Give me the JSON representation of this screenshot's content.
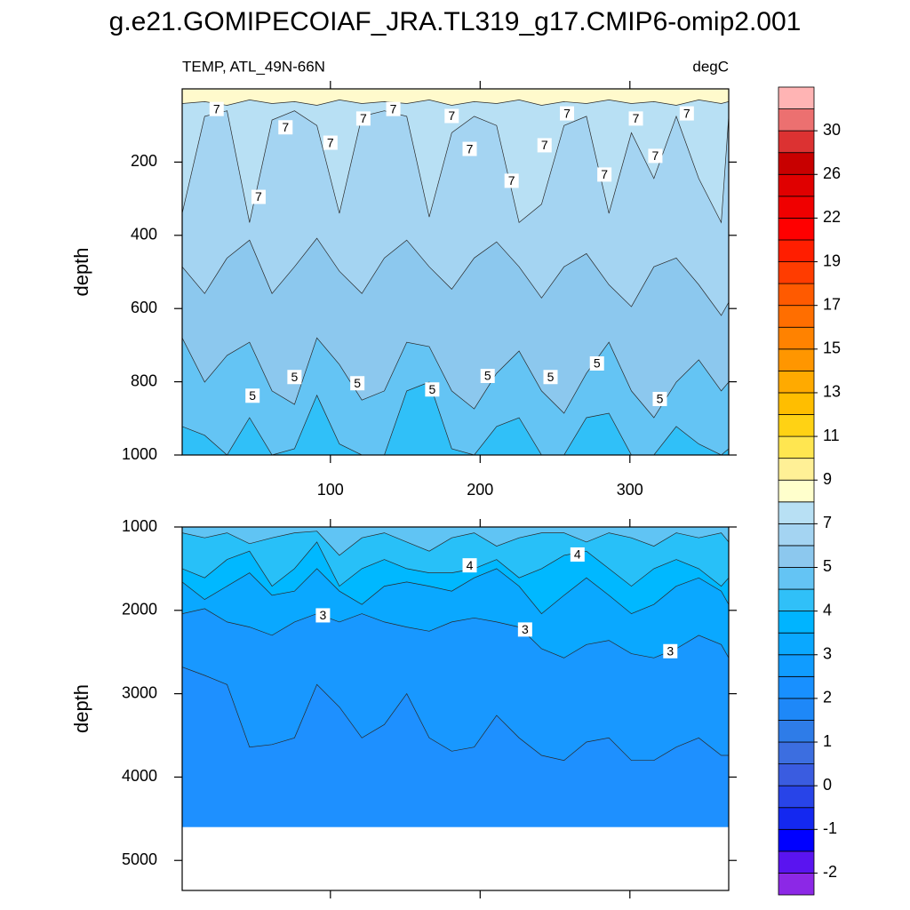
{
  "title": "g.e21.GOMIPECOIAF_JRA.TL319_g17.CMIP6-omip2.001",
  "chart_data": [
    {
      "type": "contour",
      "subtitle_left": "TEMP, ATL_49N-66N",
      "subtitle_right": "degC",
      "ylabel": "depth",
      "xlim": [
        1,
        366
      ],
      "xticks": [
        100,
        200,
        300
      ],
      "show_xtick_labels": true,
      "ylim": [
        0,
        1000
      ],
      "yticks": [
        200,
        400,
        600,
        800,
        1000
      ],
      "x": [
        1,
        16,
        31,
        46,
        61,
        76,
        91,
        106,
        121,
        136,
        151,
        166,
        181,
        196,
        211,
        226,
        241,
        256,
        271,
        286,
        301,
        316,
        331,
        346,
        361,
        366
      ],
      "base_color": "#30c0f8",
      "contours": [
        {
          "color": "#64c4f4",
          "depth": [
            922,
            946,
            1000,
            898,
            1000,
            983,
            837,
            970,
            1000,
            1000,
            825,
            801,
            983,
            1000,
            922,
            898,
            1000,
            1000,
            898,
            886,
            1000,
            1000,
            922,
            970,
            1000,
            983
          ]
        },
        {
          "color": "#8cc8ee",
          "depth": [
            680,
            801,
            728,
            692,
            825,
            862,
            680,
            753,
            850,
            825,
            692,
            704,
            825,
            874,
            777,
            716,
            825,
            886,
            777,
            692,
            825,
            898,
            801,
            740,
            825,
            801
          ]
        },
        {
          "color": "#a4d4f2",
          "depth": [
            486,
            559,
            462,
            413,
            559,
            486,
            408,
            498,
            559,
            462,
            413,
            486,
            547,
            462,
            418,
            486,
            571,
            486,
            450,
            535,
            595,
            486,
            462,
            535,
            619,
            583
          ]
        },
        {
          "color": "#b8e0f4",
          "depth": [
            340,
            75,
            60,
            365,
            85,
            60,
            100,
            340,
            75,
            60,
            75,
            350,
            120,
            75,
            100,
            365,
            315,
            100,
            75,
            340,
            120,
            245,
            75,
            245,
            365,
            75
          ]
        },
        {
          "color": "#fffacc",
          "depth": [
            40,
            35,
            45,
            30,
            40,
            35,
            45,
            30,
            40,
            35,
            40,
            30,
            45,
            35,
            40,
            30,
            45,
            35,
            40,
            30,
            40,
            35,
            45,
            30,
            40,
            35
          ]
        }
      ],
      "contour_labels": [
        {
          "x": 24,
          "y": 55,
          "value": 7
        },
        {
          "x": 70,
          "y": 105,
          "value": 7
        },
        {
          "x": 100,
          "y": 147,
          "value": 7
        },
        {
          "x": 122,
          "y": 81,
          "value": 7
        },
        {
          "x": 142,
          "y": 55,
          "value": 7
        },
        {
          "x": 181,
          "y": 74,
          "value": 7
        },
        {
          "x": 193,
          "y": 164,
          "value": 7
        },
        {
          "x": 221,
          "y": 251,
          "value": 7
        },
        {
          "x": 243,
          "y": 154,
          "value": 7
        },
        {
          "x": 258,
          "y": 67,
          "value": 7
        },
        {
          "x": 283,
          "y": 234,
          "value": 7
        },
        {
          "x": 304,
          "y": 81,
          "value": 7
        },
        {
          "x": 317,
          "y": 183,
          "value": 7
        },
        {
          "x": 338,
          "y": 67,
          "value": 7
        },
        {
          "x": 52,
          "y": 295,
          "value": 7
        },
        {
          "x": 48,
          "y": 838,
          "value": 5
        },
        {
          "x": 76,
          "y": 787,
          "value": 5
        },
        {
          "x": 118,
          "y": 804,
          "value": 5
        },
        {
          "x": 168,
          "y": 821,
          "value": 5
        },
        {
          "x": 205,
          "y": 784,
          "value": 5
        },
        {
          "x": 247,
          "y": 787,
          "value": 5
        },
        {
          "x": 278,
          "y": 750,
          "value": 5
        },
        {
          "x": 320,
          "y": 847,
          "value": 5
        }
      ]
    },
    {
      "type": "contour",
      "ylabel": "depth",
      "xlim": [
        1,
        366
      ],
      "xticks": [
        100,
        200,
        300
      ],
      "show_xtick_labels": false,
      "ylim": [
        1000,
        5360
      ],
      "yticks": [
        1000,
        2000,
        3000,
        4000,
        5000
      ],
      "data_bottom": 4600,
      "x": [
        1,
        16,
        31,
        46,
        61,
        76,
        91,
        106,
        121,
        136,
        151,
        166,
        181,
        196,
        211,
        226,
        241,
        256,
        271,
        286,
        301,
        316,
        331,
        346,
        361,
        366
      ],
      "base_color": "#1e90ff",
      "contours": [
        {
          "color": "#1898ff",
          "depth": [
            2680,
            2780,
            2890,
            3640,
            3610,
            3530,
            2890,
            3160,
            3530,
            3370,
            3000,
            3530,
            3690,
            3640,
            3260,
            3530,
            3740,
            3800,
            3580,
            3530,
            3800,
            3800,
            3640,
            3530,
            3740,
            3740
          ]
        },
        {
          "color": "#0aa8ff",
          "depth": [
            2040,
            1980,
            2140,
            2200,
            2300,
            2140,
            2040,
            2140,
            2040,
            2140,
            2200,
            2250,
            2140,
            2090,
            2140,
            2200,
            2460,
            2570,
            2410,
            2360,
            2520,
            2570,
            2460,
            2300,
            2410,
            2570
          ]
        },
        {
          "color": "#00b8ff",
          "depth": [
            1660,
            1870,
            1710,
            1550,
            1820,
            1770,
            1500,
            1770,
            1930,
            1710,
            1660,
            1710,
            1770,
            1610,
            1500,
            1710,
            2040,
            1820,
            1610,
            1820,
            2040,
            1930,
            1710,
            1610,
            1770,
            1930
          ]
        },
        {
          "color": "#28c0f8",
          "depth": [
            1500,
            1610,
            1390,
            1290,
            1710,
            1500,
            1180,
            1710,
            1500,
            1390,
            1500,
            1550,
            1550,
            1500,
            1390,
            1610,
            1500,
            1340,
            1290,
            1500,
            1710,
            1500,
            1390,
            1500,
            1710,
            1610
          ]
        },
        {
          "color": "#60c4f4",
          "depth": [
            1070,
            1130,
            1070,
            1200,
            1130,
            1070,
            1050,
            1340,
            1130,
            1070,
            1180,
            1290,
            1130,
            1070,
            1230,
            1130,
            1070,
            1070,
            1180,
            1070,
            1130,
            1230,
            1070,
            1130,
            1070,
            1180
          ]
        }
      ],
      "contour_labels": [
        {
          "x": 193,
          "y": 1460,
          "value": 4
        },
        {
          "x": 265,
          "y": 1330,
          "value": 4
        },
        {
          "x": 95,
          "y": 2060,
          "value": 3
        },
        {
          "x": 230,
          "y": 2230,
          "value": 3
        },
        {
          "x": 327,
          "y": 2490,
          "value": 3
        }
      ]
    }
  ],
  "colorbar": {
    "levels": [
      -2,
      -1,
      0,
      1,
      2,
      3,
      4,
      5,
      7,
      9,
      11,
      13,
      15,
      17,
      19,
      22,
      26,
      30
    ],
    "colors": [
      "#8c28e6",
      "#5a14f0",
      "#0000ff",
      "#1428f0",
      "#2844e8",
      "#3a5ce0",
      "#3c6ee0",
      "#2e7ce8",
      "#1e88f8",
      "#1890ff",
      "#109cff",
      "#0aa8ff",
      "#00b4ff",
      "#30c0f8",
      "#64c4f4",
      "#8cc8ee",
      "#a4d4f2",
      "#b8e0f4",
      "#ffffcc",
      "#fff096",
      "#ffe650",
      "#ffd214",
      "#ffbe00",
      "#ffaa00",
      "#ff9600",
      "#ff8200",
      "#ff6e00",
      "#ff5a00",
      "#ff3c00",
      "#ff1e00",
      "#ff0000",
      "#f00000",
      "#e00000",
      "#c80000",
      "#dc3232",
      "#ec7070",
      "#ffb4b4"
    ]
  }
}
